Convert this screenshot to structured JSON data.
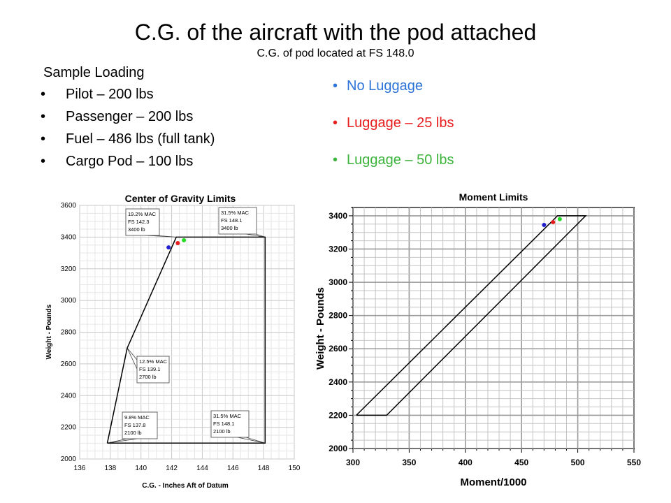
{
  "slide": {
    "title": "C.G. of the aircraft with the pod attached",
    "subtitle": "C.G. of pod located at FS 148.0",
    "loading_heading": "Sample Loading",
    "loading_items": [
      "Pilot – 200 lbs",
      "Passenger – 200 lbs",
      "Fuel – 486 lbs (full tank)",
      "Cargo Pod – 100 lbs"
    ],
    "bullet_char": "•",
    "legend": [
      {
        "label": "No Luggage",
        "color": "#2e74d6"
      },
      {
        "label": "Luggage – 25 lbs",
        "color": "#e81e1e"
      },
      {
        "label": "Luggage – 50 lbs",
        "color": "#3cb43c"
      }
    ]
  },
  "chart_data": [
    {
      "type": "line",
      "title": "Center of Gravity Limits",
      "xlabel": "C.G. - Inches Aft of Datum",
      "ylabel": "Weight - Pounds",
      "xlim": [
        136,
        150
      ],
      "ylim": [
        2000,
        3600
      ],
      "xticks": [
        136,
        138,
        140,
        142,
        144,
        146,
        148,
        150
      ],
      "yticks": [
        2000,
        2200,
        2400,
        2600,
        2800,
        3000,
        3200,
        3400,
        3600
      ],
      "grid": true,
      "envelope": [
        {
          "x": 137.8,
          "y": 2100
        },
        {
          "x": 139.1,
          "y": 2700
        },
        {
          "x": 142.3,
          "y": 3400
        },
        {
          "x": 148.1,
          "y": 3400
        },
        {
          "x": 148.1,
          "y": 2100
        },
        {
          "x": 137.8,
          "y": 2100
        }
      ],
      "annotations": [
        {
          "lines": [
            "19.2% MAC",
            "FS 142.3",
            "3400 lb"
          ]
        },
        {
          "lines": [
            "31.5% MAC",
            "FS 148.1",
            "3400 lb"
          ]
        },
        {
          "lines": [
            "12.5% MAC",
            "FS 139.1",
            "2700 lb"
          ]
        },
        {
          "lines": [
            "9.8% MAC",
            "FS 137.8",
            "2100 lb"
          ]
        },
        {
          "lines": [
            "31.5% MAC",
            "FS 148.1",
            "2100 lb"
          ]
        }
      ],
      "points": [
        {
          "x": 141.8,
          "y": 3335,
          "color": "#1f1fd0"
        },
        {
          "x": 142.4,
          "y": 3362,
          "color": "#e81e1e"
        },
        {
          "x": 142.8,
          "y": 3380,
          "color": "#22dd22"
        }
      ]
    },
    {
      "type": "line",
      "title": "Moment Limits",
      "xlabel": "Moment/1000",
      "ylabel": "Weight - Pounds",
      "xlim": [
        300,
        550
      ],
      "ylim": [
        2000,
        3450
      ],
      "xticks": [
        300,
        350,
        400,
        450,
        500,
        550
      ],
      "yticks": [
        2000,
        2200,
        2400,
        2600,
        2800,
        3000,
        3200,
        3400
      ],
      "grid": true,
      "envelope": [
        {
          "x": 303,
          "y": 2200
        },
        {
          "x": 330,
          "y": 2200
        },
        {
          "x": 507,
          "y": 3400
        },
        {
          "x": 482,
          "y": 3400
        },
        {
          "x": 303,
          "y": 2200
        }
      ],
      "points": [
        {
          "x": 470,
          "y": 3345,
          "color": "#1f1fd0"
        },
        {
          "x": 478,
          "y": 3362,
          "color": "#e81e1e"
        },
        {
          "x": 484,
          "y": 3380,
          "color": "#22dd22"
        }
      ]
    }
  ]
}
